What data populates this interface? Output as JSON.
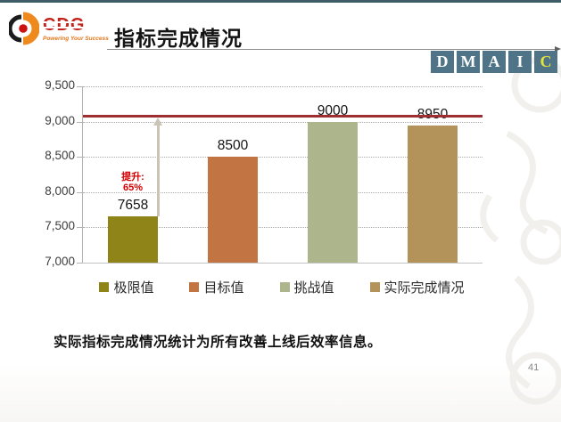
{
  "slide": {
    "page_number": "41",
    "accent": {
      "top_bar_color": "#3f5d66",
      "dmaic_box_color": "#4f7387",
      "title_rule_color": "#8f8f8f"
    }
  },
  "header": {
    "logo": {
      "brand": "CDG",
      "tagline": "Powering Your Success"
    },
    "title": "指标完成情况",
    "dmaic": [
      {
        "letter": "D",
        "color": "#ffffff"
      },
      {
        "letter": "M",
        "color": "#ffffff"
      },
      {
        "letter": "A",
        "color": "#ffffff"
      },
      {
        "letter": "I",
        "color": "#ffffff"
      },
      {
        "letter": "C",
        "color": "#e6e43a"
      }
    ]
  },
  "chart_data": {
    "type": "bar",
    "title": "",
    "categories": [
      "极限值",
      "目标值",
      "挑战值",
      "实际完成情况"
    ],
    "values": [
      7658,
      8500,
      9000,
      8950
    ],
    "data_labels": [
      "7658",
      "8500",
      "9000",
      "8950"
    ],
    "bar_colors": [
      "#8f8418",
      "#c27443",
      "#adb58d",
      "#b3935a"
    ],
    "xlabel": "",
    "ylabel": "",
    "ylim": [
      7000,
      9500
    ],
    "y_tick_values": [
      9500,
      9000,
      8500,
      8000,
      7500,
      7000
    ],
    "y_ticks": [
      "9,500",
      "9,000",
      "8,500",
      "8,000",
      "7,500",
      "7,000"
    ],
    "gridlines": true,
    "reference_line": {
      "value": 9080,
      "color": "#9d2f32"
    },
    "improvement_annotation": {
      "line1": "提升:",
      "line2": "65%",
      "color": "#d40000",
      "arrow_color": "#c9c4b4"
    },
    "legend_position": "bottom",
    "legend": [
      {
        "label": "极限值",
        "color": "#8f8418"
      },
      {
        "label": "目标值",
        "color": "#c27443"
      },
      {
        "label": "挑战值",
        "color": "#adb58d"
      },
      {
        "label": "实际完成情况",
        "color": "#b3935a"
      }
    ]
  },
  "footer": {
    "note": "实际指标完成情况统计为所有改善上线后效率信息。"
  }
}
